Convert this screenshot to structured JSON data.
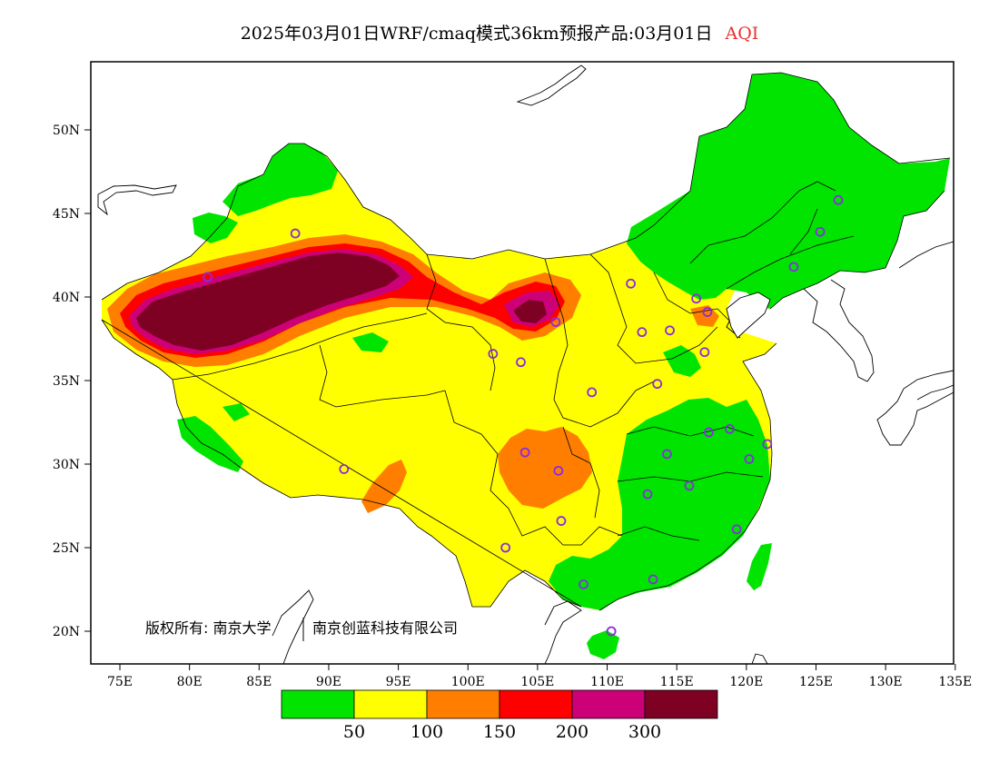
{
  "title": {
    "main": "2025年03月01日WRF/cmaq模式36km预报产品:03月01日",
    "variable": "AQI"
  },
  "colors": {
    "good": "#00e400",
    "moderate": "#ffff00",
    "usg": "#ff7e00",
    "unhealthy": "#ff0000",
    "very_unhealthy": "#cc0077",
    "hazardous": "#7e0023",
    "station_marker": "#8a2be2"
  },
  "axes": {
    "x_ticks": [
      "75E",
      "80E",
      "85E",
      "90E",
      "95E",
      "100E",
      "105E",
      "110E",
      "115E",
      "120E",
      "125E",
      "130E",
      "135E"
    ],
    "y_ticks": [
      "20N",
      "25N",
      "30N",
      "35N",
      "40N",
      "45N",
      "50N"
    ]
  },
  "colorbar": {
    "labels": [
      "50",
      "100",
      "150",
      "200",
      "300"
    ]
  },
  "copyright": {
    "part1": "版权所有: 南京大学",
    "part2": "南京创蓝科技有限公司"
  },
  "stations": [
    [
      87.6,
      43.8
    ],
    [
      81.3,
      41.2
    ],
    [
      101.8,
      36.6
    ],
    [
      103.8,
      36.1
    ],
    [
      106.3,
      38.5
    ],
    [
      111.7,
      40.8
    ],
    [
      116.4,
      39.9
    ],
    [
      117.2,
      39.1
    ],
    [
      112.5,
      37.9
    ],
    [
      114.5,
      38.0
    ],
    [
      113.6,
      34.8
    ],
    [
      117.0,
      36.7
    ],
    [
      108.9,
      34.3
    ],
    [
      104.1,
      30.7
    ],
    [
      106.5,
      29.6
    ],
    [
      112.9,
      28.2
    ],
    [
      114.3,
      30.6
    ],
    [
      117.3,
      31.9
    ],
    [
      118.8,
      32.1
    ],
    [
      121.5,
      31.2
    ],
    [
      120.2,
      30.3
    ],
    [
      115.9,
      28.7
    ],
    [
      119.3,
      26.1
    ],
    [
      113.3,
      23.1
    ],
    [
      108.3,
      22.8
    ],
    [
      106.7,
      26.6
    ],
    [
      102.7,
      25.0
    ],
    [
      91.1,
      29.7
    ],
    [
      110.3,
      20.0
    ],
    [
      126.6,
      45.8
    ],
    [
      125.3,
      43.9
    ],
    [
      123.4,
      41.8
    ]
  ]
}
